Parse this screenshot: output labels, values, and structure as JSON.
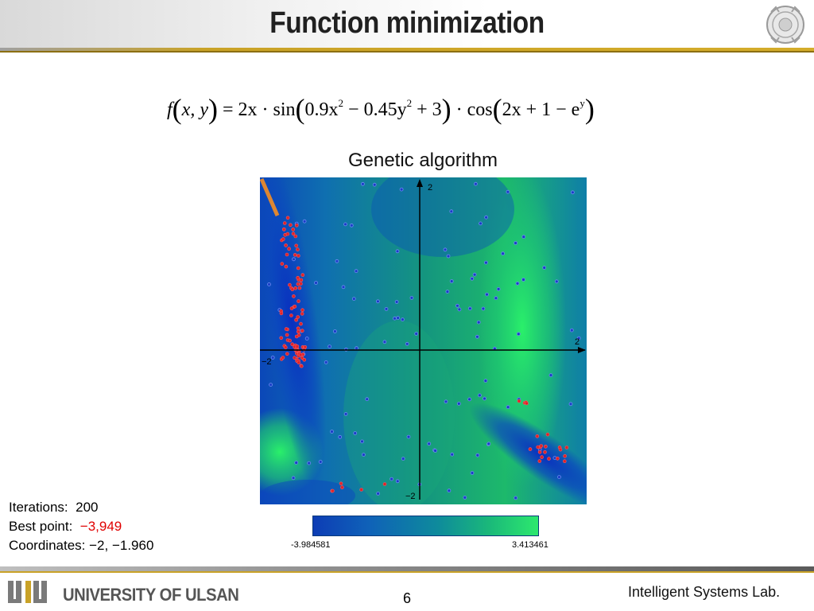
{
  "header": {
    "title": "Function minimization"
  },
  "formula": {
    "lhs_f": "f",
    "lhs_args": "x, y",
    "rhs_pre": "= 2x · sin",
    "sin_arg_a": "0.9x",
    "sin_arg_a_exp": "2",
    "sin_arg_b": " − 0.45y",
    "sin_arg_b_exp": "2",
    "sin_arg_c": " + 3",
    "rhs_mid": " · cos",
    "cos_arg": "2x + 1 − e",
    "cos_arg_exp": "y"
  },
  "plot": {
    "caption": "Genetic algorithm",
    "axis_labels": {
      "x_pos": "2",
      "x_neg": "−2",
      "y_pos": "2",
      "y_neg": "−2"
    },
    "colorbar": {
      "min_label": "-3.984581",
      "max_label": "3.413461"
    }
  },
  "info": {
    "iterations_label": "Iterations:",
    "iterations_value": "200",
    "best_label": "Best point:",
    "best_value": "−3,949",
    "coords_label": "Coordinates:",
    "coords_value": "−2, −1.960"
  },
  "footer": {
    "university": "UNIVERSITY OF ULSAN",
    "page_number": "6",
    "lab": "Intelligent Systems Lab."
  }
}
